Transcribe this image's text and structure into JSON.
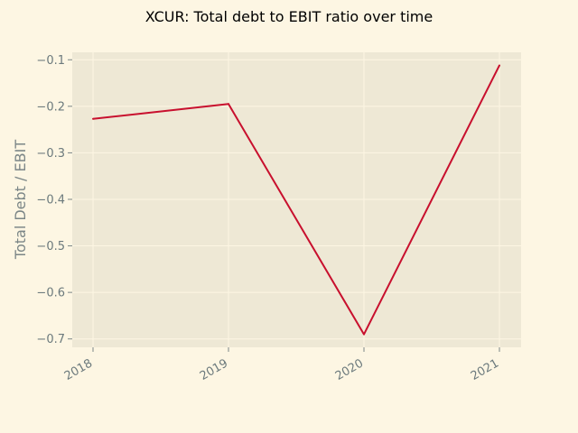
{
  "chart_data": {
    "type": "line",
    "title": "XCUR: Total debt to EBIT ratio over time",
    "xlabel": "",
    "ylabel": "Total Debt / EBIT",
    "x": [
      "2018",
      "2019",
      "2020",
      "2021"
    ],
    "series": [
      {
        "name": "Total Debt / EBIT",
        "values": [
          -0.227,
          -0.195,
          -0.69,
          -0.112
        ]
      }
    ],
    "ylim": [
      -0.718,
      -0.084
    ],
    "yticks": [
      -0.1,
      -0.2,
      -0.3,
      -0.4,
      -0.5,
      -0.6,
      -0.7
    ],
    "ytick_labels": [
      "−0.1",
      "−0.2",
      "−0.3",
      "−0.4",
      "−0.5",
      "−0.6",
      "−0.7"
    ],
    "grid": true,
    "colors": {
      "figure_bg": "#fdf6e3",
      "axes_bg": "#eee8d5",
      "line": "#c8102e",
      "grid": "#fdf6e3"
    }
  }
}
